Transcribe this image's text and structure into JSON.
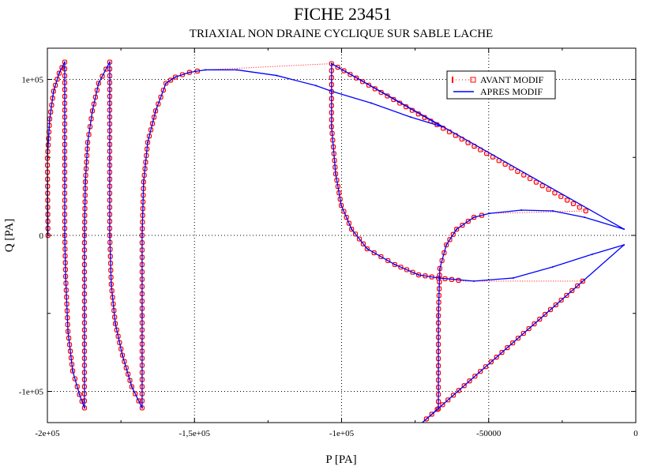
{
  "chart_data": {
    "type": "line",
    "title": "FICHE 23451",
    "subtitle": "TRIAXIAL NON DRAINE CYCLIQUE SUR SABLE LACHE",
    "xlabel": "P [PA]",
    "ylabel": "Q [PA]",
    "xlim": [
      -200000,
      0
    ],
    "ylim": [
      -120000,
      120000
    ],
    "grid": true,
    "x_major_ticks": [
      -200000,
      -150000,
      -100000,
      -50000,
      0
    ],
    "x_tick_labels": [
      "-2e+05",
      "-1,5e+05",
      "-1e+05",
      "-50000",
      "0"
    ],
    "x_minor_ticks": [
      -175000,
      -125000,
      -75000,
      -25000
    ],
    "y_major_ticks": [
      -100000,
      0,
      100000
    ],
    "y_tick_labels": [
      "-1e+05",
      "0",
      "1e+05"
    ],
    "y_minor_ticks": [
      -50000,
      50000
    ],
    "legend_position": "top-right",
    "colors": {
      "avant": "#ff0000",
      "apres": "#0000ff",
      "grid": "#000000"
    },
    "series": [
      {
        "name": "AVANT MODIF",
        "style": "dotted-with-markers",
        "segments": [
          [
            [
              -199800,
              0
            ],
            [
              -200000,
              49500
            ],
            [
              -199200,
              74700
            ],
            [
              -197900,
              92400
            ],
            [
              -196000,
              104000
            ],
            [
              -194100,
              111100
            ],
            [
              -194100,
              49500
            ],
            [
              -194100,
              0
            ],
            [
              -193800,
              -26300
            ],
            [
              -193000,
              -61600
            ],
            [
              -191400,
              -86900
            ],
            [
              -189100,
              -102000
            ],
            [
              -187400,
              -110600
            ],
            [
              -187400,
              -51500
            ],
            [
              -187400,
              0
            ],
            [
              -187100,
              34300
            ],
            [
              -186300,
              59600
            ],
            [
              -184700,
              79800
            ],
            [
              -182600,
              97500
            ],
            [
              -178800,
              111100
            ],
            [
              -178800,
              49500
            ],
            [
              -178800,
              0
            ],
            [
              -178300,
              -31300
            ],
            [
              -176900,
              -56600
            ],
            [
              -174500,
              -76800
            ],
            [
              -171300,
              -97000
            ],
            [
              -167800,
              -110600
            ],
            [
              -167800,
              -51500
            ],
            [
              -167800,
              0
            ],
            [
              -167300,
              34300
            ],
            [
              -165900,
              59600
            ],
            [
              -163200,
              79800
            ],
            [
              -159700,
              97500
            ],
            [
              -156500,
              101500
            ],
            [
              -151700,
              104500
            ],
            [
              -146300,
              106100
            ]
          ],
          [
            [
              -103400,
              110100
            ],
            [
              -103400,
              69700
            ],
            [
              -102000,
              39400
            ],
            [
              -100100,
              19200
            ],
            [
              -96600,
              4000
            ],
            [
              -91300,
              -8600
            ],
            [
              -81900,
              -18700
            ],
            [
              -73800,
              -25300
            ],
            [
              -67100,
              -27300
            ],
            [
              -58000,
              -29300
            ]
          ],
          [
            [
              -18000,
              -29300
            ],
            [
              -73000,
              -120700
            ]
          ],
          [
            [
              -67100,
              -111100
            ],
            [
              -67100,
              -51500
            ],
            [
              -66600,
              -21200
            ],
            [
              -64400,
              -6100
            ],
            [
              -60900,
              4000
            ],
            [
              -55000,
              11600
            ],
            [
              -49700,
              14100
            ]
          ],
          [
            [
              -17000,
              15700
            ],
            [
              -103400,
              110100
            ]
          ]
        ]
      },
      {
        "name": "APRES MODIF",
        "style": "solid",
        "points": [
          [
            -199800,
            0
          ],
          [
            -200000,
            49500
          ],
          [
            -199200,
            74700
          ],
          [
            -197900,
            92400
          ],
          [
            -196000,
            104000
          ],
          [
            -194100,
            111100
          ],
          [
            -194100,
            49500
          ],
          [
            -194100,
            0
          ],
          [
            -193800,
            -26300
          ],
          [
            -193000,
            -61600
          ],
          [
            -191400,
            -86900
          ],
          [
            -189100,
            -102000
          ],
          [
            -187400,
            -110600
          ],
          [
            -187400,
            -51500
          ],
          [
            -187400,
            0
          ],
          [
            -187100,
            34300
          ],
          [
            -186300,
            59600
          ],
          [
            -184700,
            79800
          ],
          [
            -182600,
            97500
          ],
          [
            -178800,
            111100
          ],
          [
            -178800,
            49500
          ],
          [
            -178800,
            0
          ],
          [
            -178300,
            -31300
          ],
          [
            -176900,
            -56600
          ],
          [
            -174500,
            -76800
          ],
          [
            -171300,
            -97000
          ],
          [
            -167800,
            -110600
          ],
          [
            -167800,
            -51500
          ],
          [
            -167800,
            0
          ],
          [
            -167300,
            34300
          ],
          [
            -165900,
            59600
          ],
          [
            -163200,
            79800
          ],
          [
            -159700,
            97500
          ],
          [
            -156500,
            101500
          ],
          [
            -151700,
            104500
          ],
          [
            -146300,
            106100
          ],
          [
            -135600,
            106100
          ],
          [
            -122100,
            102500
          ],
          [
            -108700,
            96000
          ],
          [
            -103400,
            92400
          ],
          [
            -89900,
            84800
          ],
          [
            -76500,
            75800
          ],
          [
            -65800,
            69700
          ],
          [
            -103400,
            110100
          ],
          [
            -103400,
            69700
          ],
          [
            -102000,
            39400
          ],
          [
            -100100,
            19200
          ],
          [
            -96600,
            4000
          ],
          [
            -91300,
            -8600
          ],
          [
            -81900,
            -18700
          ],
          [
            -73800,
            -25300
          ],
          [
            -67100,
            -27300
          ],
          [
            -55000,
            -29300
          ],
          [
            -41600,
            -27300
          ],
          [
            -28200,
            -20200
          ],
          [
            -14800,
            -12100
          ],
          [
            -4000,
            -6100
          ],
          [
            -73000,
            -120700
          ],
          [
            -67100,
            -111100
          ],
          [
            -67100,
            -51500
          ],
          [
            -66600,
            -21200
          ],
          [
            -64400,
            -6100
          ],
          [
            -60900,
            4000
          ],
          [
            -55000,
            11600
          ],
          [
            -49700,
            14100
          ],
          [
            -38900,
            16200
          ],
          [
            -28200,
            15700
          ],
          [
            -17400,
            11600
          ],
          [
            -4000,
            4000
          ],
          [
            -103400,
            110100
          ]
        ]
      }
    ]
  }
}
